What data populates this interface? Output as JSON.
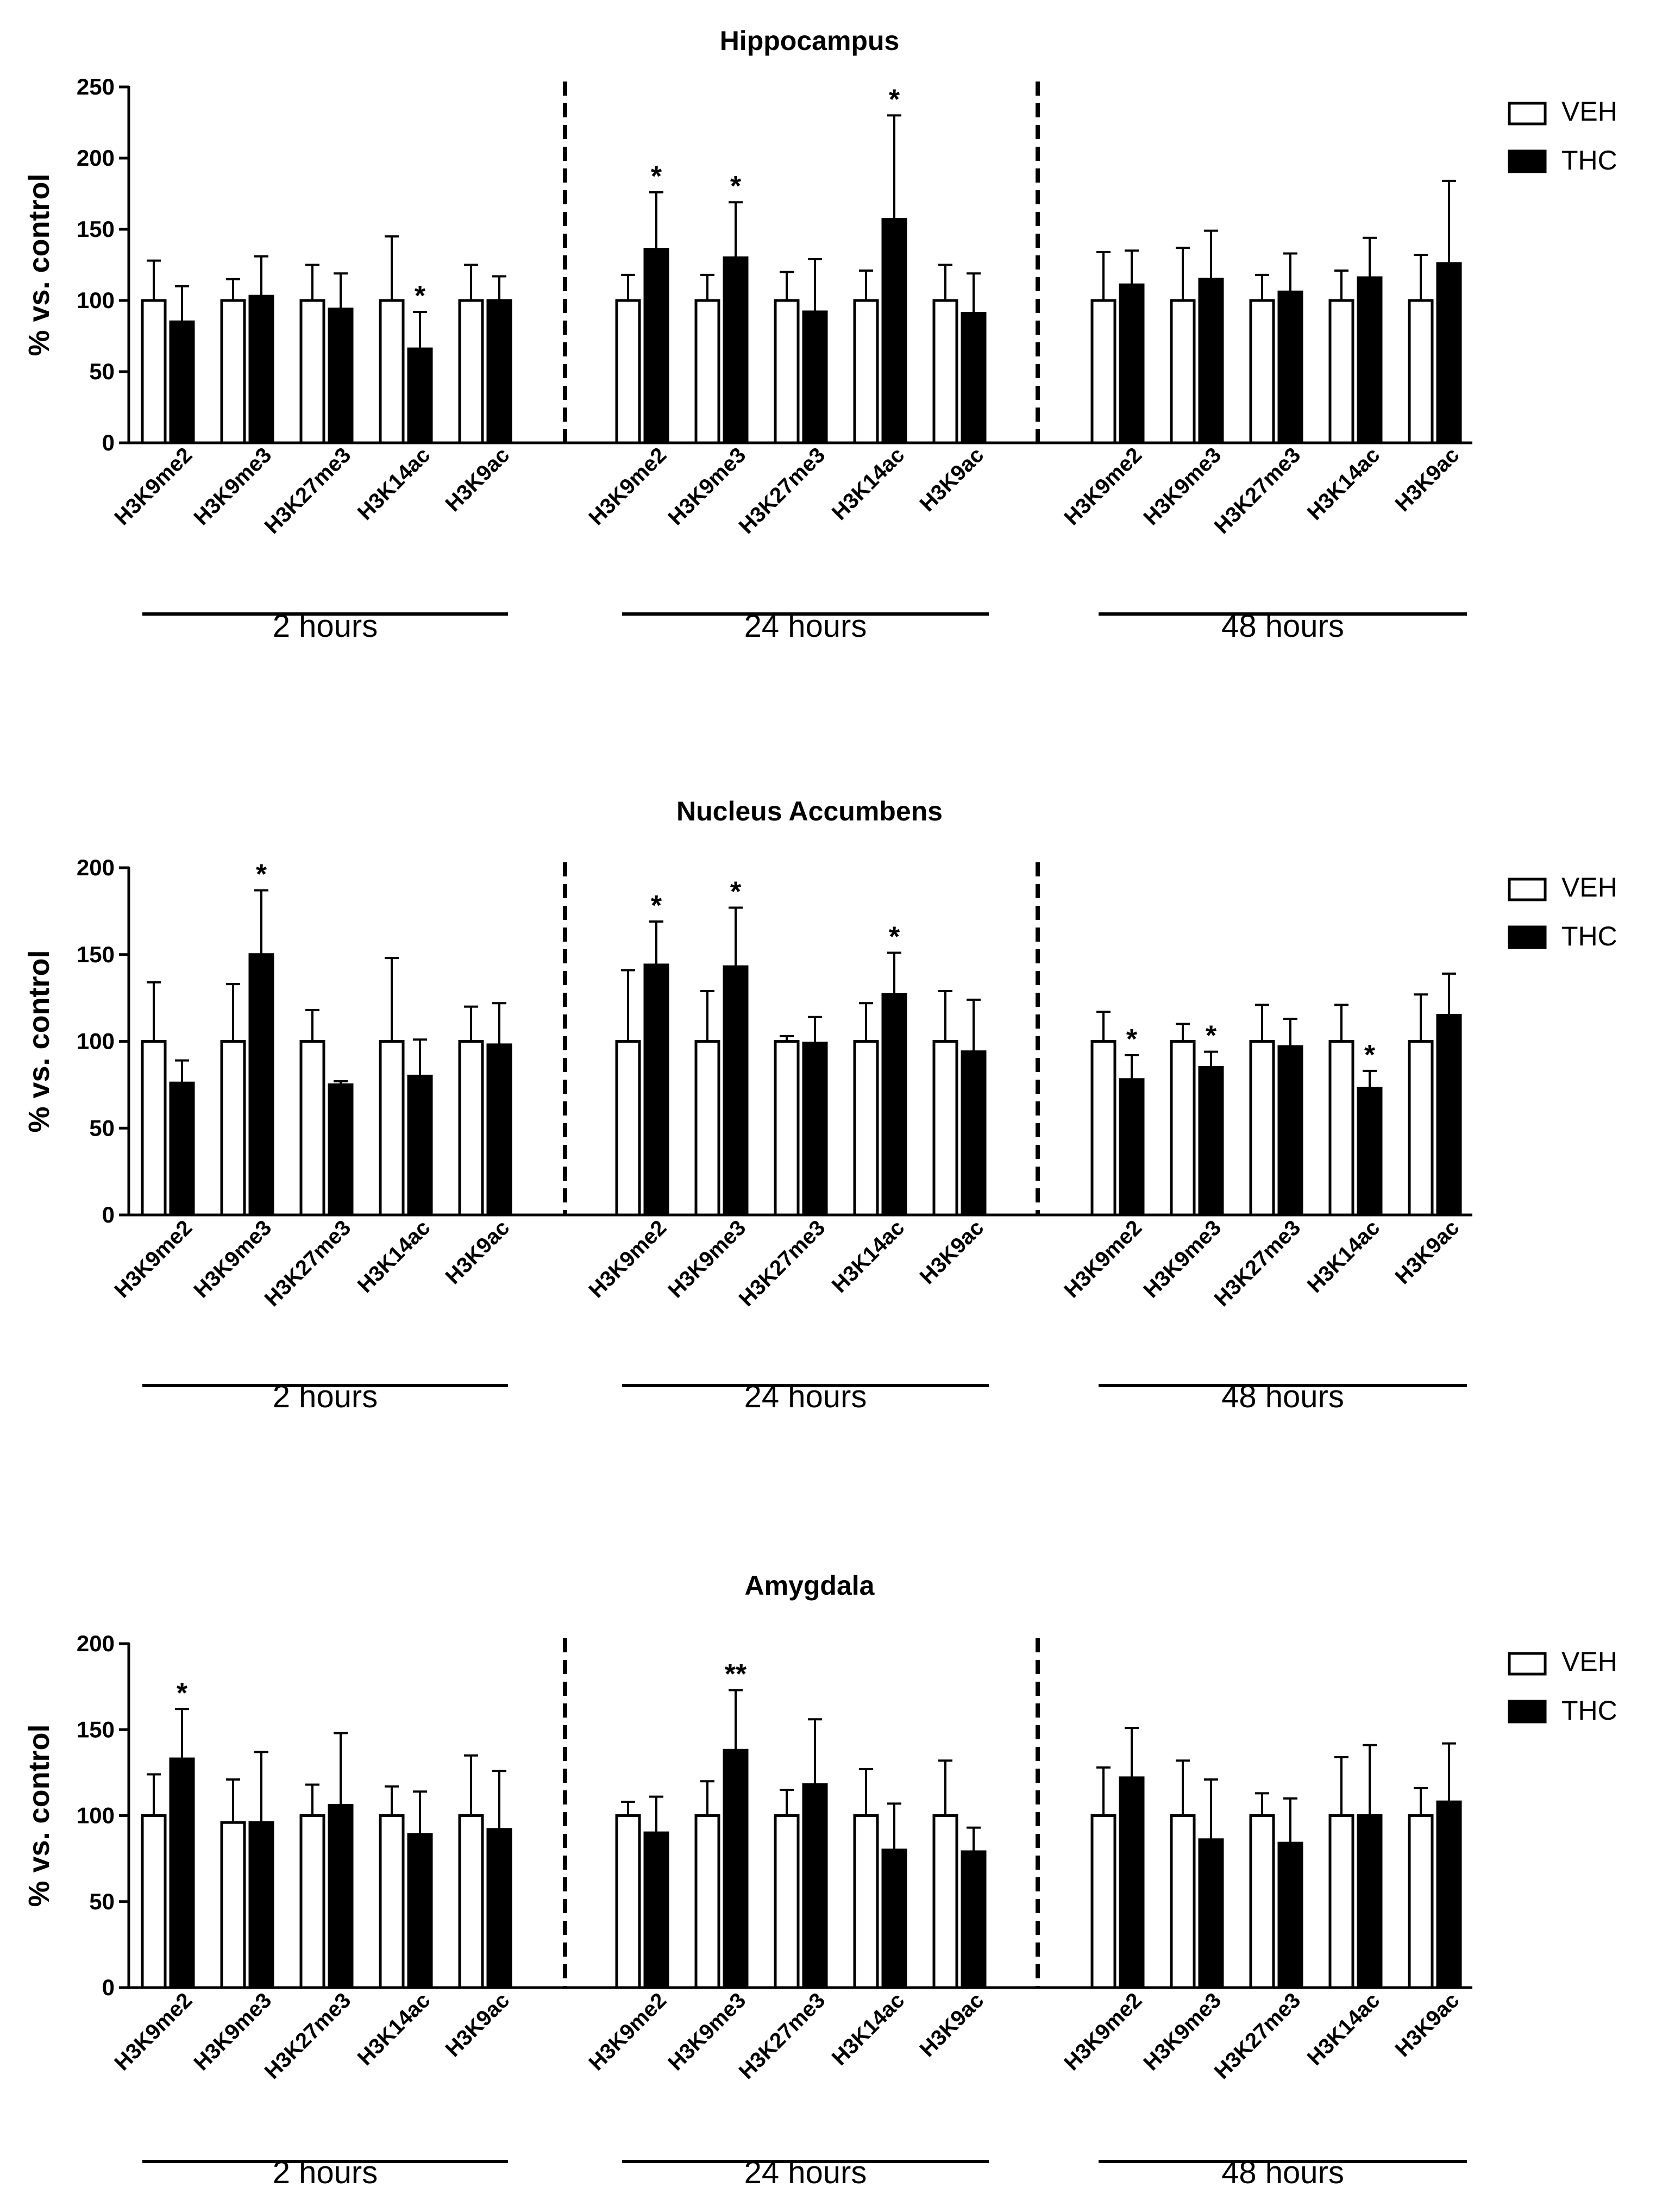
{
  "colors": {
    "veh_fill": "#ffffff",
    "thc_fill": "#000000",
    "stroke": "#000000"
  },
  "legend": {
    "veh": "VEH",
    "thc": "THC"
  },
  "chart_data": [
    {
      "type": "bar",
      "title": "Hippocampus",
      "ylabel": "% vs. control",
      "ylim": [
        0,
        250
      ],
      "yticks": [
        0,
        50,
        100,
        150,
        200,
        250
      ],
      "categories": [
        "H3K9me2",
        "H3K9me3",
        "H3K27me3",
        "H3K14ac",
        "H3K9ac"
      ],
      "groups": [
        {
          "label": "2 hours",
          "veh": [
            100,
            100,
            100,
            100,
            100
          ],
          "veh_err": [
            28,
            15,
            25,
            45,
            25
          ],
          "thc": [
            85,
            103,
            94,
            66,
            100
          ],
          "thc_err": [
            25,
            28,
            25,
            26,
            17
          ],
          "sig": [
            "",
            "",
            "",
            "*",
            ""
          ]
        },
        {
          "label": "24 hours",
          "veh": [
            100,
            100,
            100,
            100,
            100
          ],
          "veh_err": [
            18,
            18,
            20,
            21,
            25
          ],
          "thc": [
            136,
            130,
            92,
            157,
            91
          ],
          "thc_err": [
            40,
            39,
            37,
            73,
            28
          ],
          "sig": [
            "*",
            "*",
            "",
            "*",
            ""
          ]
        },
        {
          "label": "48 hours",
          "veh": [
            100,
            100,
            100,
            100,
            100
          ],
          "veh_err": [
            34,
            37,
            18,
            21,
            32
          ],
          "thc": [
            111,
            115,
            106,
            116,
            126
          ],
          "thc_err": [
            24,
            34,
            27,
            28,
            58
          ],
          "sig": [
            "",
            "",
            "",
            "",
            ""
          ]
        }
      ]
    },
    {
      "type": "bar",
      "title": "Nucleus Accumbens",
      "ylabel": "% vs. control",
      "ylim": [
        0,
        200
      ],
      "yticks": [
        0,
        50,
        100,
        150,
        200
      ],
      "categories": [
        "H3K9me2",
        "H3K9me3",
        "H3K27me3",
        "H3K14ac",
        "H3K9ac"
      ],
      "groups": [
        {
          "label": "2 hours",
          "veh": [
            100,
            100,
            100,
            100,
            100
          ],
          "veh_err": [
            34,
            33,
            18,
            48,
            20
          ],
          "thc": [
            76,
            150,
            75,
            80,
            98
          ],
          "thc_err": [
            13,
            37,
            2,
            21,
            24
          ],
          "sig": [
            "",
            "*",
            "",
            "",
            ""
          ]
        },
        {
          "label": "24 hours",
          "veh": [
            100,
            100,
            100,
            100,
            100
          ],
          "veh_err": [
            41,
            29,
            3,
            22,
            29
          ],
          "thc": [
            144,
            143,
            99,
            127,
            94
          ],
          "thc_err": [
            25,
            34,
            15,
            24,
            30
          ],
          "sig": [
            "*",
            "*",
            "",
            "*",
            ""
          ]
        },
        {
          "label": "48 hours",
          "veh": [
            100,
            100,
            100,
            100,
            100
          ],
          "veh_err": [
            17,
            10,
            21,
            21,
            27
          ],
          "thc": [
            78,
            85,
            97,
            73,
            115
          ],
          "thc_err": [
            14,
            9,
            16,
            10,
            24
          ],
          "sig": [
            "*",
            "*",
            "",
            "*",
            ""
          ]
        }
      ]
    },
    {
      "type": "bar",
      "title": "Amygdala",
      "ylabel": "% vs. control",
      "ylim": [
        0,
        200
      ],
      "yticks": [
        0,
        50,
        100,
        150,
        200
      ],
      "categories": [
        "H3K9me2",
        "H3K9me3",
        "H3K27me3",
        "H3K14ac",
        "H3K9ac"
      ],
      "groups": [
        {
          "label": "2 hours",
          "veh": [
            100,
            96,
            100,
            100,
            100
          ],
          "veh_err": [
            24,
            25,
            18,
            17,
            35
          ],
          "thc": [
            133,
            96,
            106,
            89,
            92
          ],
          "thc_err": [
            29,
            41,
            42,
            25,
            34
          ],
          "sig": [
            "*",
            "",
            "",
            "",
            ""
          ]
        },
        {
          "label": "24 hours",
          "veh": [
            100,
            100,
            100,
            100,
            100
          ],
          "veh_err": [
            8,
            20,
            15,
            27,
            32
          ],
          "thc": [
            90,
            138,
            118,
            80,
            79
          ],
          "thc_err": [
            21,
            35,
            38,
            27,
            14
          ],
          "sig": [
            "",
            "**",
            "",
            "",
            ""
          ]
        },
        {
          "label": "48 hours",
          "veh": [
            100,
            100,
            100,
            100,
            100
          ],
          "veh_err": [
            28,
            32,
            13,
            34,
            16
          ],
          "thc": [
            122,
            86,
            84,
            100,
            108
          ],
          "thc_err": [
            29,
            35,
            26,
            41,
            34
          ],
          "sig": [
            "",
            "",
            "",
            "",
            ""
          ]
        }
      ]
    }
  ]
}
